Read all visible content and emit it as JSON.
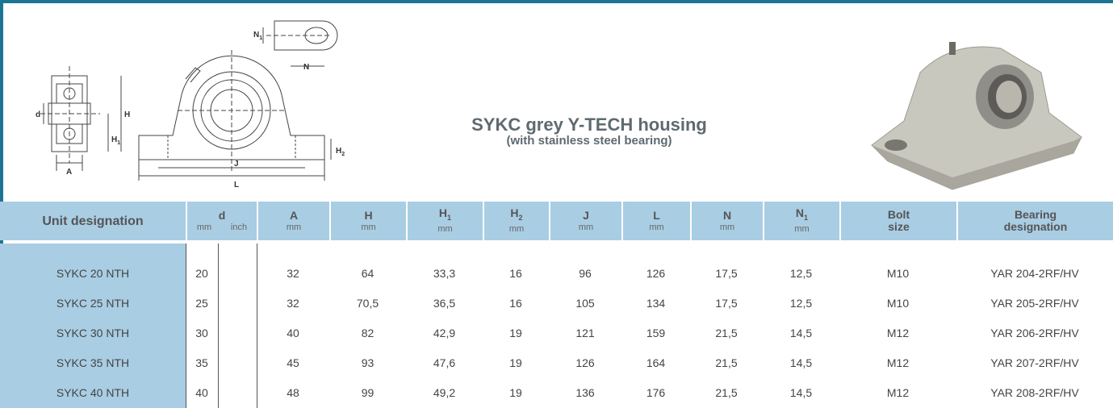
{
  "header": {
    "title": "SYKC grey Y-TECH housing",
    "subtitle": "(with stainless steel bearing)"
  },
  "drawing": {
    "labels": [
      {
        "text": "N",
        "sub": "1"
      },
      {
        "text": "N"
      },
      {
        "text": "d"
      },
      {
        "text": "H"
      },
      {
        "text": "H",
        "sub": "1"
      },
      {
        "text": "A"
      },
      {
        "text": "J"
      },
      {
        "text": "L"
      },
      {
        "text": "H",
        "sub": "2"
      }
    ]
  },
  "table": {
    "columns": [
      {
        "label": "Unit designation"
      },
      {
        "label": "d",
        "units": [
          "mm",
          "inch"
        ]
      },
      {
        "label": "A",
        "unit": "mm"
      },
      {
        "label": "H",
        "unit": "mm"
      },
      {
        "label": "H",
        "sub": "1",
        "unit": "mm"
      },
      {
        "label": "H",
        "sub": "2",
        "unit": "mm"
      },
      {
        "label": "J",
        "unit": "mm"
      },
      {
        "label": "L",
        "unit": "mm"
      },
      {
        "label": "N",
        "unit": "mm"
      },
      {
        "label": "N",
        "sub": "1",
        "unit": "mm"
      },
      {
        "lines": [
          "Bolt",
          "size"
        ]
      },
      {
        "lines": [
          "Bearing",
          "designation"
        ]
      }
    ],
    "rows": [
      [
        "SYKC 20 NTH",
        "20",
        "32",
        "64",
        "33,3",
        "16",
        "96",
        "126",
        "17,5",
        "12,5",
        "M10",
        "YAR 204-2RF/HV"
      ],
      [
        "SYKC 25 NTH",
        "25",
        "32",
        "70,5",
        "36,5",
        "16",
        "105",
        "134",
        "17,5",
        "12,5",
        "M10",
        "YAR 205-2RF/HV"
      ],
      [
        "SYKC 30 NTH",
        "30",
        "40",
        "82",
        "42,9",
        "19",
        "121",
        "159",
        "21,5",
        "14,5",
        "M12",
        "YAR 206-2RF/HV"
      ],
      [
        "SYKC 35 NTH",
        "35",
        "45",
        "93",
        "47,6",
        "19",
        "126",
        "164",
        "21,5",
        "14,5",
        "M12",
        "YAR 207-2RF/HV"
      ],
      [
        "SYKC 40 NTH",
        "40",
        "48",
        "99",
        "49,2",
        "19",
        "136",
        "176",
        "21,5",
        "14,5",
        "M12",
        "YAR 208-2RF/HV"
      ]
    ]
  }
}
